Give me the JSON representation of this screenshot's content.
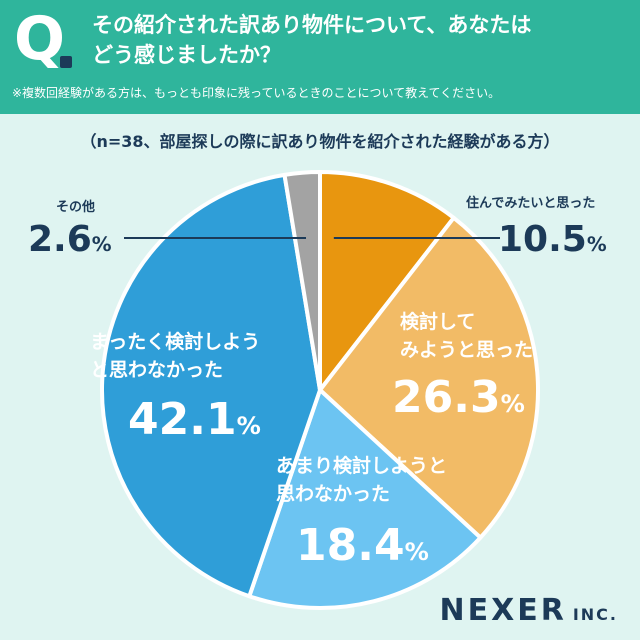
{
  "header": {
    "q_mark": "Q",
    "title_line1": "その紹介された訳あり物件について、あなたは",
    "title_line2": "どう感じましたか？",
    "note": "※複数回経験がある方は、もっとも印象に残っているときのことについて教えてください。"
  },
  "sample_note": "（n=38、部屋探しの際に訳あり物件を紹介された経験がある方）",
  "chart_data": {
    "type": "pie",
    "title": "その紹介された訳あり物件について、あなたはどう感じましたか？",
    "unit": "%",
    "slices": [
      {
        "label": "住んでみたいと思った",
        "value": 10.5,
        "color": "#e8960f"
      },
      {
        "label": "検討してみようと思った",
        "value": 26.3,
        "color": "#f2bb66"
      },
      {
        "label": "あまり検討しようと思わなかった",
        "value": 18.4,
        "color": "#6cc4f2"
      },
      {
        "label": "まったく検討しようと思わなかった",
        "value": 42.1,
        "color": "#2f9ed8"
      },
      {
        "label": "その他",
        "value": 2.6,
        "color": "#a3a3a3"
      }
    ]
  },
  "labels": {
    "s0_name": "住んでみたいと思った",
    "s0_pct": "10.5",
    "s1_name_line1": "検討して",
    "s1_name_line2": "みようと思った",
    "s1_pct": "26.3",
    "s2_name_line1": "あまり検討しようと",
    "s2_name_line2": "思わなかった",
    "s2_pct": "18.4",
    "s3_name_line1": "まったく検討しよう",
    "s3_name_line2": "と思わなかった",
    "s3_pct": "42.1",
    "s4_name": "その他",
    "s4_pct": "2.6",
    "pct_unit": "%"
  },
  "logo": {
    "name": "NEXER",
    "suffix": "INC."
  }
}
